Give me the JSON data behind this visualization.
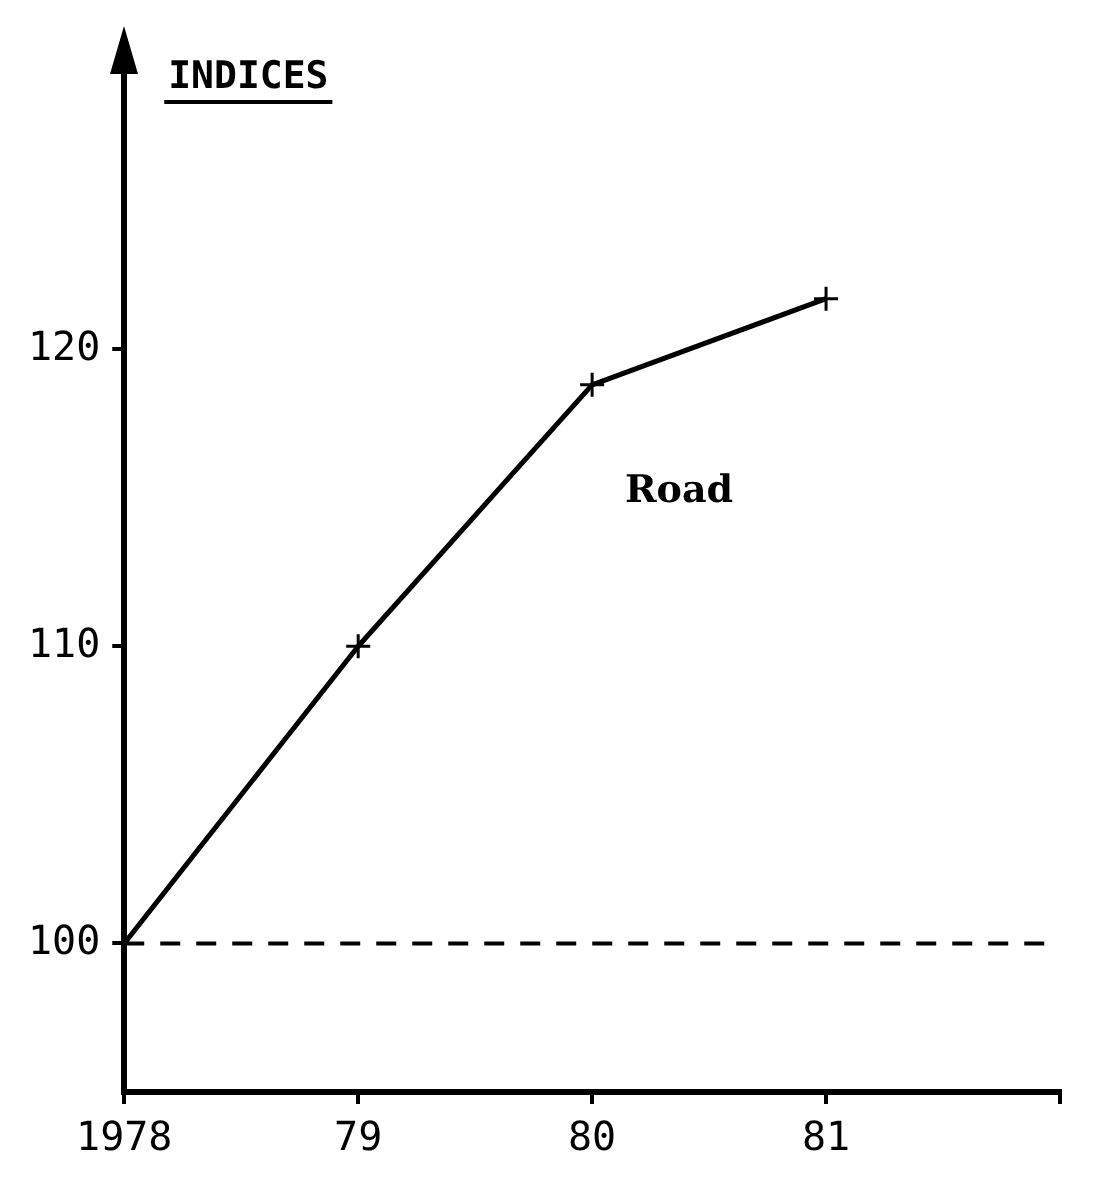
{
  "chart_data": {
    "type": "line",
    "ylabel": "INDICES",
    "x": [
      1978,
      1979,
      1980,
      1981
    ],
    "series": [
      {
        "name": "Road",
        "color": "#000000",
        "values": [
          100,
          110,
          118.8,
          121.7
        ]
      }
    ],
    "xlim": [
      1978,
      1982
    ],
    "xticks": [
      1978,
      {
        "value": 1979,
        "label": "79"
      },
      {
        "value": 1980,
        "label": "80"
      },
      {
        "value": 1981,
        "label": "81"
      },
      {
        "value": 1982,
        "label": null
      }
    ],
    "ylim": [
      95,
      130
    ],
    "yticks": [
      100,
      110,
      120
    ],
    "ref_lines": [
      {
        "axis": "y",
        "value": 100,
        "line_style": "dashed",
        "color": "#000000"
      }
    ],
    "grid": false,
    "legend": false,
    "marker": "cross",
    "line_style": "solid"
  }
}
